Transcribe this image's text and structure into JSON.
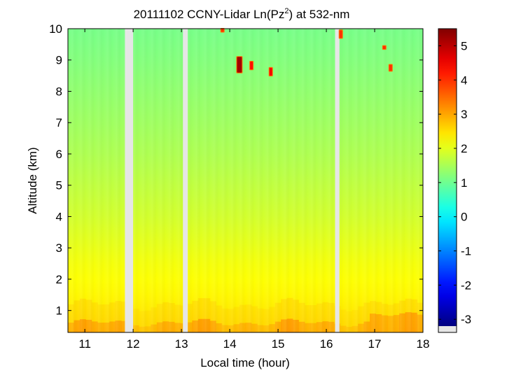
{
  "chart_data": {
    "type": "heatmap",
    "title": "20111102 CCNY-Lidar Ln(Pz",
    "title_superscript": "2",
    "title_suffix": ") at 532-nm",
    "xlabel": "Local time (hour)",
    "ylabel": "Altitude (km)",
    "xlim": [
      10.65,
      18.0
    ],
    "ylim": [
      0.3,
      10.0
    ],
    "x_ticks": [
      11,
      12,
      13,
      14,
      15,
      16,
      17,
      18
    ],
    "x_tick_labels": [
      "11",
      "12",
      "13",
      "14",
      "15",
      "16",
      "17",
      "18"
    ],
    "y_ticks": [
      1,
      2,
      3,
      4,
      5,
      6,
      7,
      8,
      9,
      10
    ],
    "y_tick_labels": [
      "1",
      "2",
      "3",
      "4",
      "5",
      "6",
      "7",
      "8",
      "9",
      "10"
    ],
    "colorbar": {
      "colormap": "jet",
      "range": [
        -3.2,
        5.5
      ],
      "ticks": [
        -3,
        -2,
        -1,
        0,
        1,
        2,
        3,
        4,
        5
      ],
      "tick_labels": [
        "-3",
        "-2",
        "-1",
        "0",
        "1",
        "2",
        "3",
        "4",
        "5"
      ],
      "missing_data_color": "#e6e6e6"
    },
    "data_gaps_hours": [
      [
        11.83,
        12.0
      ],
      [
        13.03,
        13.13
      ],
      [
        16.18,
        16.27
      ]
    ],
    "altitude_profile": {
      "altitude_km": [
        0.3,
        0.5,
        1.0,
        1.5,
        2.0,
        2.5,
        3.0,
        4.0,
        5.0,
        6.0,
        7.0,
        8.0,
        9.0,
        10.0
      ],
      "ln_pz2": [
        2.7,
        2.55,
        2.4,
        2.3,
        2.22,
        2.15,
        2.05,
        1.85,
        1.7,
        1.55,
        1.42,
        1.3,
        1.18,
        1.08
      ]
    },
    "cloud_features": [
      {
        "time_hour": 14.2,
        "altitude_km": [
          8.6,
          9.1
        ],
        "ln_pz2": 5.2
      },
      {
        "time_hour": 14.45,
        "altitude_km": [
          8.7,
          8.95
        ],
        "ln_pz2": 4.3
      },
      {
        "time_hour": 14.85,
        "altitude_km": [
          8.5,
          8.75
        ],
        "ln_pz2": 4.5
      },
      {
        "time_hour": 13.85,
        "altitude_km": [
          9.9,
          10.0
        ],
        "ln_pz2": 4.0
      },
      {
        "time_hour": 16.3,
        "altitude_km": [
          9.7,
          9.95
        ],
        "ln_pz2": 4.0
      },
      {
        "time_hour": 17.2,
        "altitude_km": [
          9.35,
          9.45
        ],
        "ln_pz2": 4.0
      },
      {
        "time_hour": 17.33,
        "altitude_km": [
          8.65,
          8.85
        ],
        "ln_pz2": 4.0
      }
    ]
  }
}
